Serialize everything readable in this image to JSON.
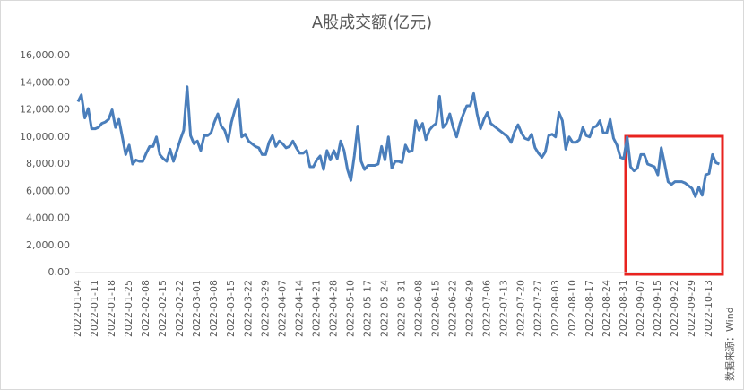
{
  "chart_data": {
    "type": "line",
    "title": "A股成交额(亿元)",
    "source": "数据来源：Wind",
    "categories": [
      "2022-01-04",
      null,
      null,
      null,
      null,
      "2022-01-11",
      null,
      null,
      null,
      null,
      "2022-01-18",
      null,
      null,
      null,
      null,
      "2022-01-25",
      null,
      null,
      null,
      null,
      "2022-02-08",
      null,
      null,
      null,
      null,
      "2022-02-15",
      null,
      null,
      null,
      null,
      "2022-02-22",
      null,
      null,
      null,
      null,
      "2022-03-01",
      null,
      null,
      null,
      null,
      "2022-03-08",
      null,
      null,
      null,
      null,
      "2022-03-15",
      null,
      null,
      null,
      null,
      "2022-03-22",
      null,
      null,
      null,
      null,
      "2022-03-29",
      null,
      null,
      null,
      null,
      "2022-04-07",
      null,
      null,
      null,
      null,
      "2022-04-14",
      null,
      null,
      null,
      null,
      "2022-04-21",
      null,
      null,
      null,
      null,
      "2022-04-28",
      null,
      null,
      null,
      null,
      "2022-05-10",
      null,
      null,
      null,
      null,
      "2022-05-17",
      null,
      null,
      null,
      null,
      "2022-05-24",
      null,
      null,
      null,
      null,
      "2022-05-31",
      null,
      null,
      null,
      null,
      "2022-06-08",
      null,
      null,
      null,
      null,
      "2022-06-15",
      null,
      null,
      null,
      null,
      "2022-06-22",
      null,
      null,
      null,
      null,
      "2022-06-29",
      null,
      null,
      null,
      null,
      "2022-07-06",
      null,
      null,
      null,
      null,
      "2022-07-13",
      null,
      null,
      null,
      null,
      "2022-07-20",
      null,
      null,
      null,
      null,
      "2022-07-27",
      null,
      null,
      null,
      null,
      "2022-08-03",
      null,
      null,
      null,
      null,
      "2022-08-10",
      null,
      null,
      null,
      null,
      "2022-08-17",
      null,
      null,
      null,
      null,
      "2022-08-24",
      null,
      null,
      null,
      null,
      "2022-08-31",
      null,
      null,
      null,
      null,
      "2022-09-07",
      null,
      null,
      null,
      null,
      "2022-09-15",
      null,
      null,
      null,
      null,
      "2022-09-22",
      null,
      null,
      null,
      null,
      "2022-09-29",
      null,
      null,
      null,
      null,
      "2022-10-13",
      null,
      null,
      null
    ],
    "series": [
      {
        "color": "#4a7ebb",
        "values": [
          12600,
          13100,
          11400,
          12100,
          10600,
          10600,
          10700,
          11000,
          11100,
          11300,
          12000,
          10700,
          11300,
          10000,
          8700,
          9400,
          8000,
          8300,
          8200,
          8200,
          8800,
          9300,
          9300,
          10000,
          8700,
          8400,
          8200,
          9100,
          8200,
          9000,
          9800,
          10500,
          13700,
          10100,
          9500,
          9700,
          9000,
          10100,
          10100,
          10300,
          11100,
          11700,
          10800,
          10500,
          9700,
          11100,
          12000,
          12800,
          10000,
          10200,
          9700,
          9500,
          9300,
          9200,
          8700,
          8700,
          9600,
          10100,
          9300,
          9700,
          9500,
          9200,
          9300,
          9700,
          9200,
          8800,
          8800,
          9000,
          7800,
          7800,
          8300,
          8600,
          7600,
          9000,
          8300,
          9000,
          8400,
          9700,
          9000,
          7600,
          6800,
          8600,
          10800,
          8200,
          7600,
          7900,
          7900,
          7900,
          8000,
          9300,
          8300,
          10000,
          7700,
          8200,
          8200,
          8100,
          9400,
          8900,
          9000,
          11200,
          10500,
          11000,
          9800,
          10500,
          10800,
          11000,
          13000,
          10700,
          11000,
          11700,
          10700,
          10000,
          11000,
          11700,
          12300,
          12300,
          13200,
          11700,
          10600,
          11300,
          11800,
          11000,
          10800,
          10600,
          10400,
          10200,
          10000,
          9600,
          10400,
          10900,
          10300,
          9900,
          9800,
          10200,
          9200,
          8800,
          8500,
          8900,
          10100,
          10200,
          10000,
          11800,
          11200,
          9100,
          10000,
          9600,
          9600,
          9800,
          10700,
          10100,
          10000,
          10700,
          10800,
          11200,
          10300,
          10300,
          11300,
          9900,
          9400,
          8500,
          8400,
          10000,
          7800,
          7500,
          7700,
          8700,
          8700,
          8000,
          7900,
          7800,
          7200,
          9200,
          8000,
          6700,
          6500,
          6700,
          6700,
          6700,
          6600,
          6400,
          6200,
          5600,
          6300,
          5700,
          7200,
          7300,
          8700,
          8100,
          8000
        ]
      }
    ],
    "ylim": [
      0,
      16000
    ],
    "yticks": [
      {
        "value": 0,
        "label": "0.00"
      },
      {
        "value": 2000,
        "label": "2,000.00"
      },
      {
        "value": 4000,
        "label": "4,000.00"
      },
      {
        "value": 6000,
        "label": "6,000.00"
      },
      {
        "value": 8000,
        "label": "8,000.00"
      },
      {
        "value": 10000,
        "label": "10,000.00"
      },
      {
        "value": 12000,
        "label": "12,000.00"
      },
      {
        "value": 14000,
        "label": "14,000.00"
      },
      {
        "value": 16000,
        "label": "16,000.00"
      }
    ],
    "grid": false
  }
}
